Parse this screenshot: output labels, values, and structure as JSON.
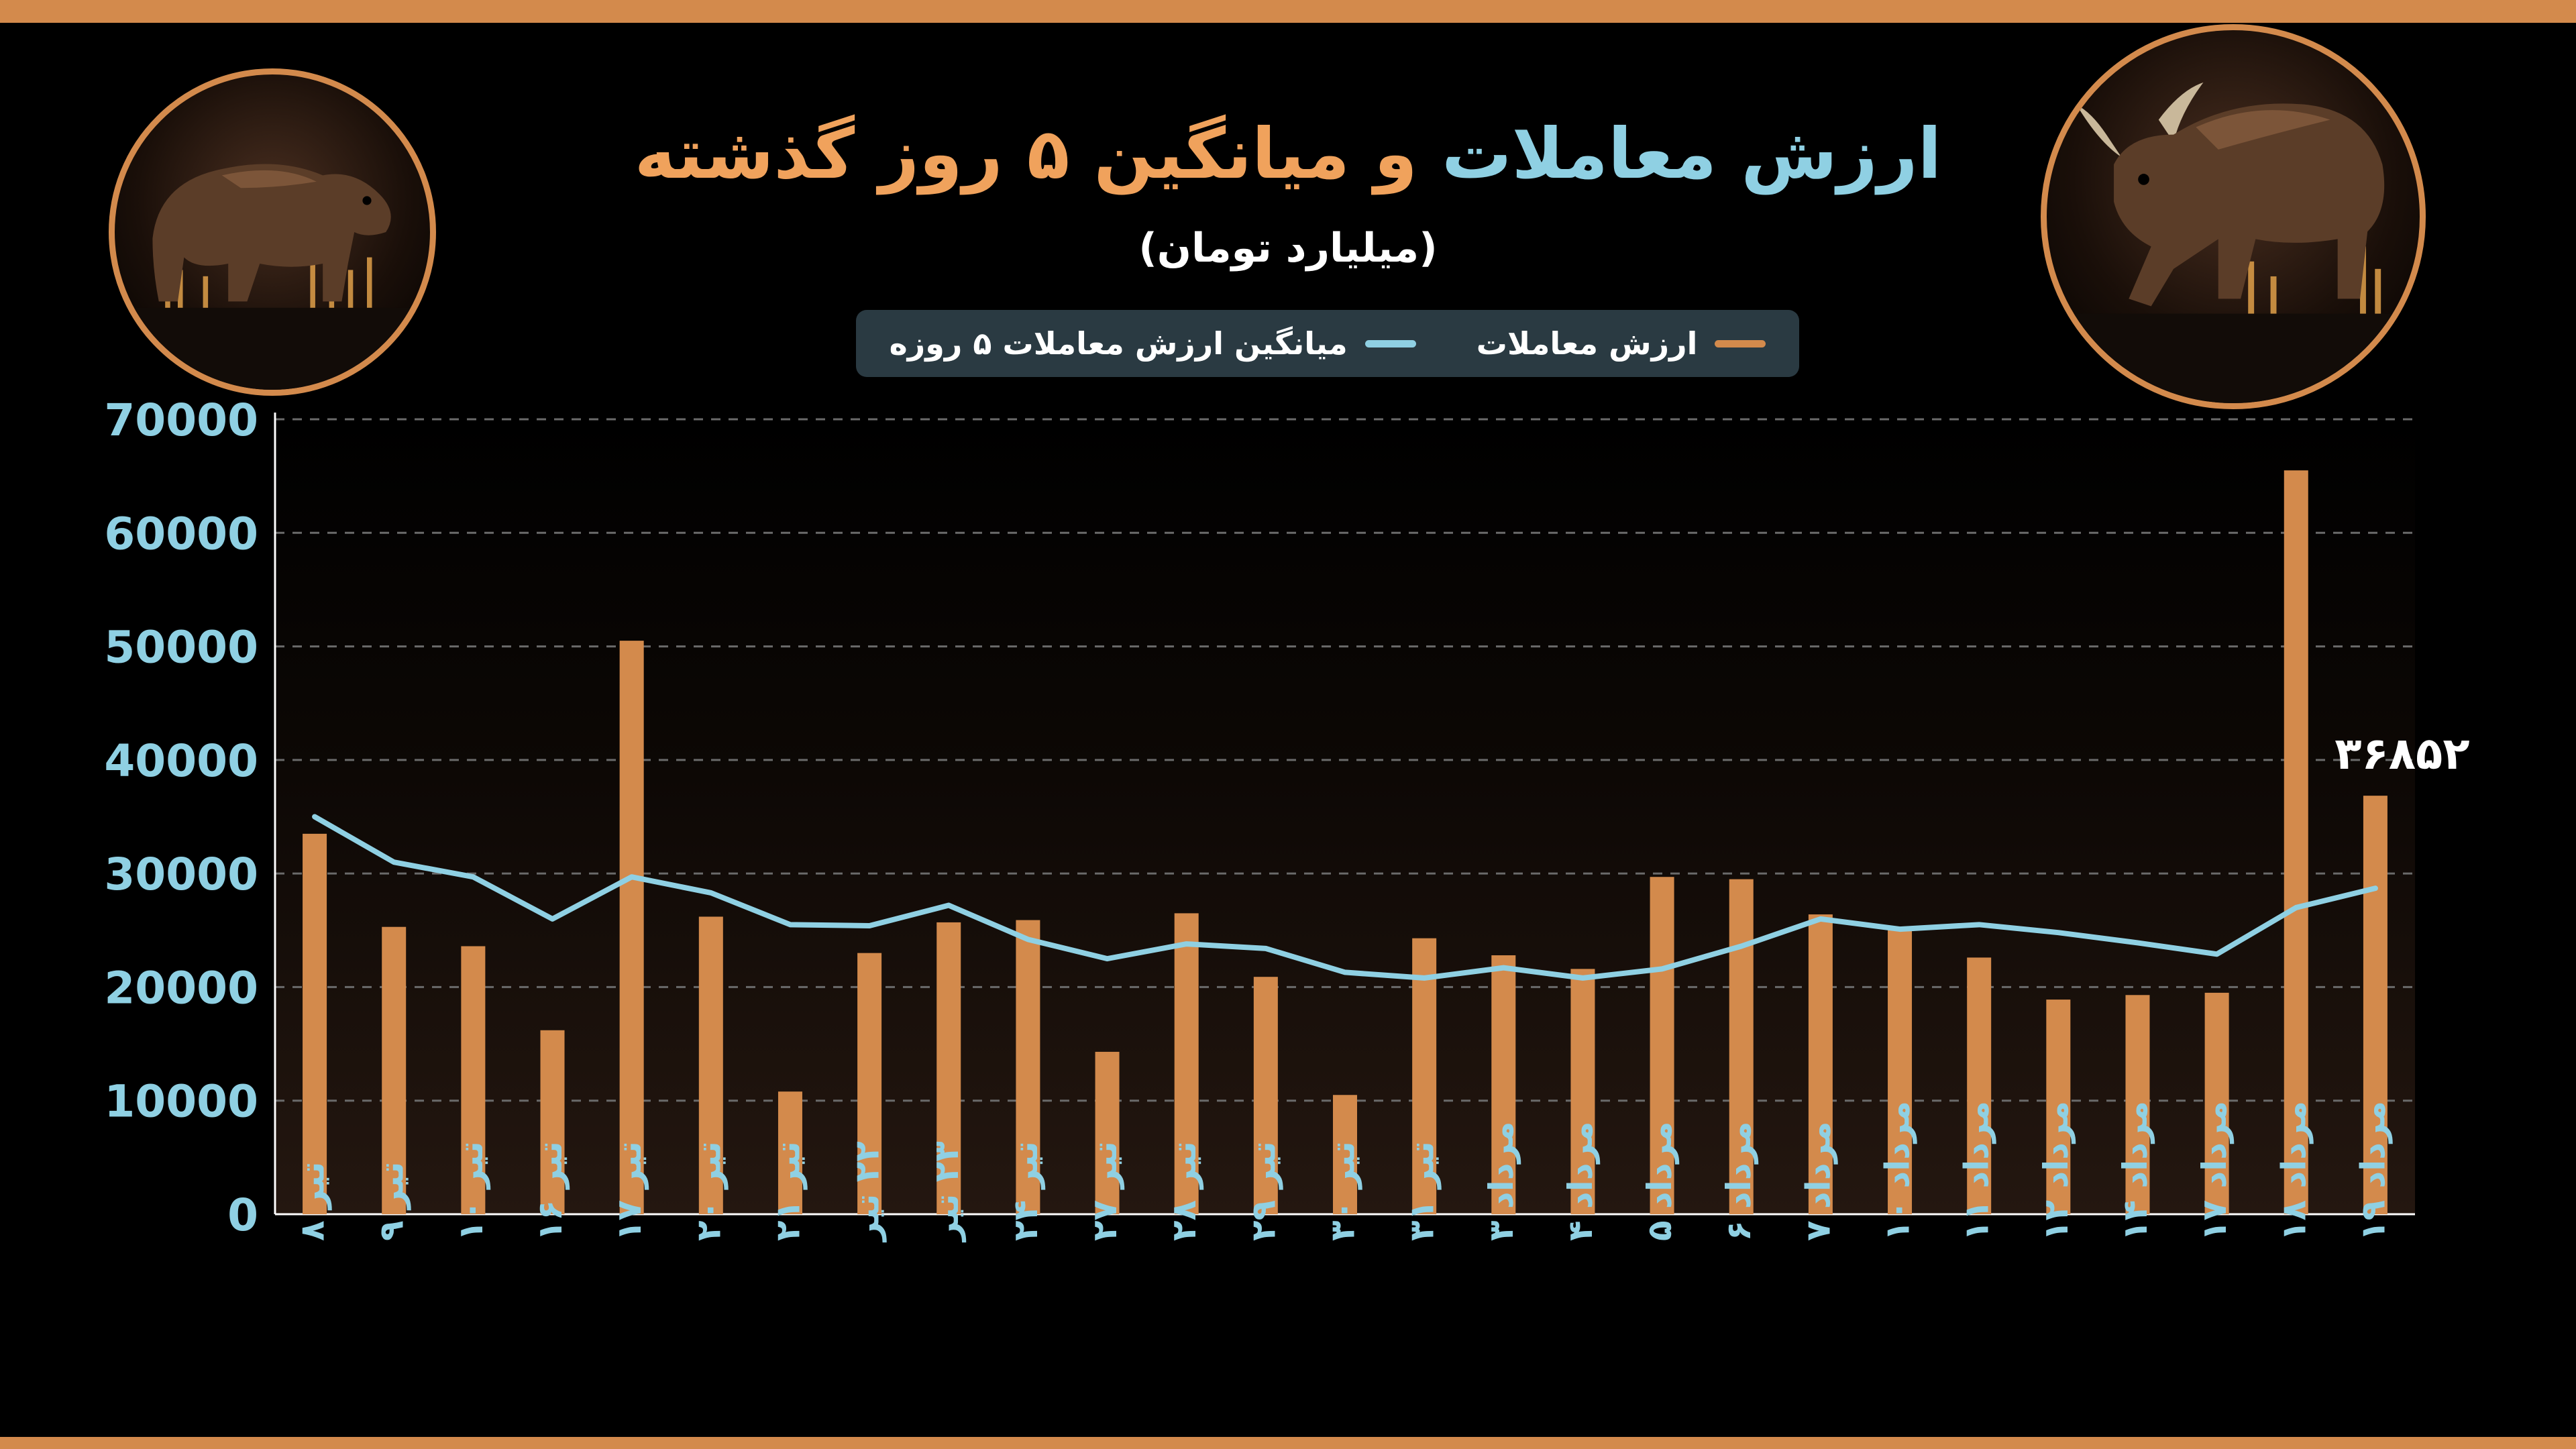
{
  "header": {
    "title_part1": "ارزش معاملات",
    "title_part2": " و میانگین ۵ روز گذشته",
    "subtitle": "(میلیارد تومان)"
  },
  "legend": {
    "line_label": "میانگین ارزش معاملات ۵ روزه",
    "bar_label": "ارزش معاملات"
  },
  "colors": {
    "bar": "#d38a4c",
    "line": "#8fd0e3",
    "background": "#000000",
    "accent": "#f0a25c"
  },
  "icons": {
    "left_image": "bear-icon",
    "right_image": "bull-icon"
  },
  "chart_data": {
    "type": "bar",
    "ylim": [
      0,
      70000
    ],
    "yticks": [
      "0",
      "10000",
      "20000",
      "30000",
      "40000",
      "50000",
      "60000",
      "70000"
    ],
    "grid": true,
    "legend_position": "top-center",
    "categories": [
      "تیر ۸",
      "تیر ۹",
      "تیر ۱۰",
      "تیر ۱۶",
      "تیر ۱۷",
      "تیر ۲۰",
      "تیر ۲۱",
      "۲۲ تیر",
      "۲۳ تیر",
      "تیر ۲۴",
      "تیر ۲۷",
      "تیر ۲۸",
      "تیر ۲۹",
      "تیر ۳۰",
      "تیر ۳۱",
      "مرداد ۳",
      "مرداد ۴",
      "مرداد ۵",
      "مرداد ۶",
      "مرداد ۷",
      "مرداد ۱۰",
      "مرداد ۱۱",
      "مرداد ۱۲",
      "مرداد ۱۴",
      "مرداد ۱۷",
      "مرداد ۱۸",
      "مرداد ۱۹"
    ],
    "series": [
      {
        "name": "ارزش معاملات",
        "type": "bar",
        "values": [
          33500,
          25300,
          23600,
          16200,
          50500,
          26200,
          10800,
          23000,
          25700,
          25900,
          14300,
          26500,
          20900,
          10500,
          24300,
          22800,
          21600,
          29700,
          29500,
          26400,
          25300,
          22600,
          18900,
          19300,
          19500,
          65500,
          36852
        ]
      },
      {
        "name": "میانگین ارزش معاملات ۵ روزه",
        "type": "line",
        "values": [
          35000,
          31000,
          29700,
          26000,
          29700,
          28300,
          25500,
          25400,
          27200,
          24200,
          22500,
          23800,
          23400,
          21300,
          20800,
          21700,
          20800,
          21600,
          23600,
          26000,
          25100,
          25500,
          24800,
          23900,
          22900,
          27000,
          28700
        ]
      }
    ],
    "data_label": {
      "index": 26,
      "text": "۳۶۸۵۲"
    }
  }
}
